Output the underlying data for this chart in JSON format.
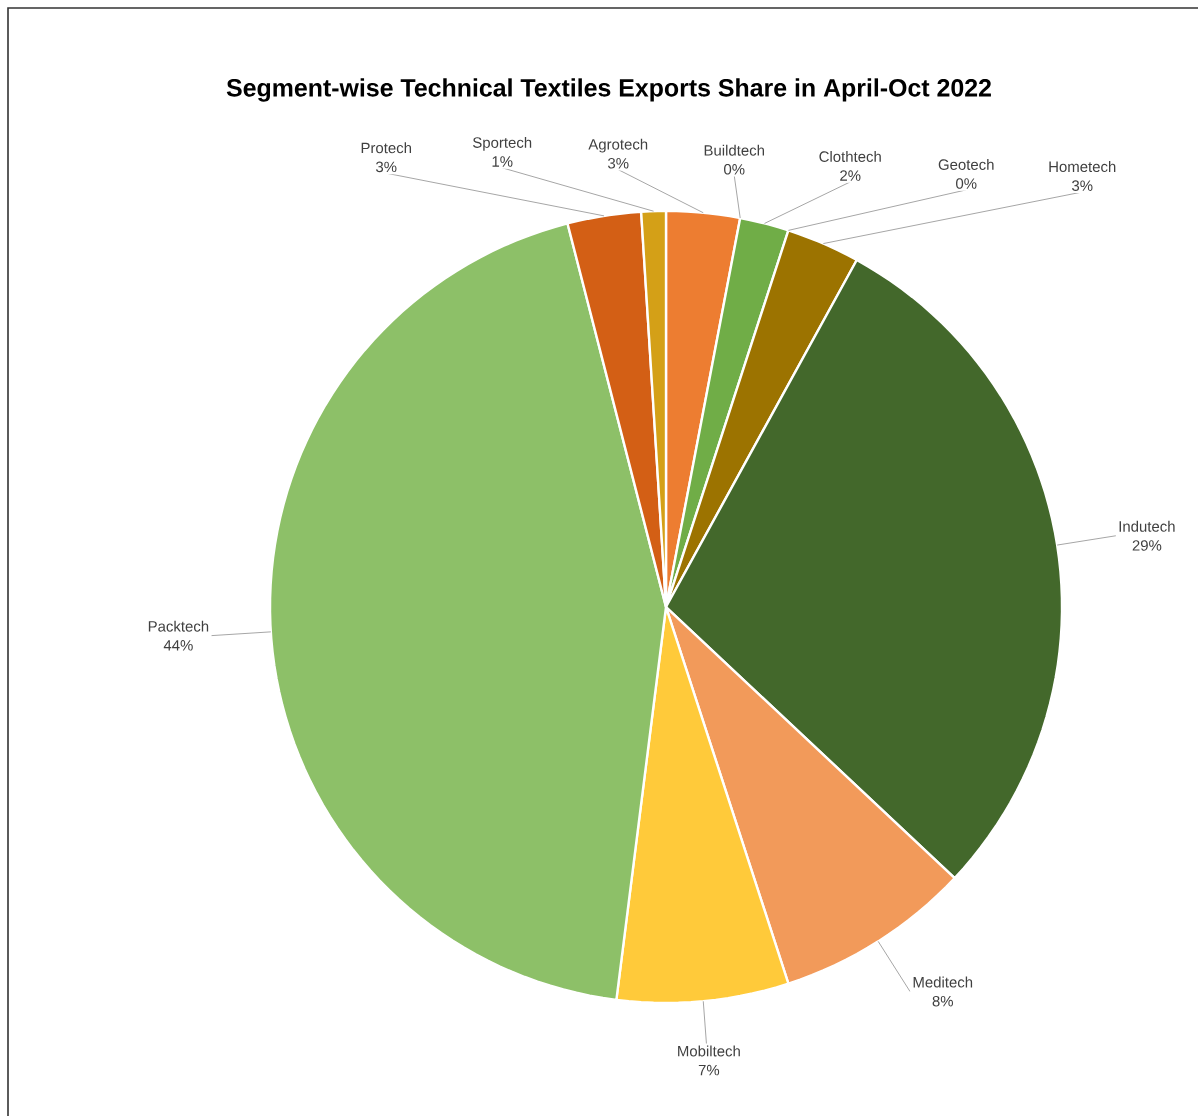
{
  "chart_data": {
    "type": "pie",
    "title": "Segment-wise Technical Textiles Exports Share in April-Oct 2022",
    "categories": [
      "Agrotech",
      "Buildtech",
      "Clothtech",
      "Geotech",
      "Hometech",
      "Indutech",
      "Meditech",
      "Mobiltech",
      "Packtech",
      "Protech",
      "Sportech"
    ],
    "values": [
      3,
      0,
      2,
      0,
      3,
      29,
      8,
      7,
      44,
      3,
      1
    ],
    "value_labels": [
      "3%",
      "0%",
      "2%",
      "0%",
      "3%",
      "29%",
      "8%",
      "7%",
      "44%",
      "3%",
      "1%"
    ],
    "colors": [
      "#ed7d31",
      "#ffc000",
      "#70ad47",
      "#c55a11",
      "#9c7300",
      "#43682b",
      "#f29a5a",
      "#ffca3a",
      "#8dc068",
      "#d35f15",
      "#d4a017"
    ]
  }
}
